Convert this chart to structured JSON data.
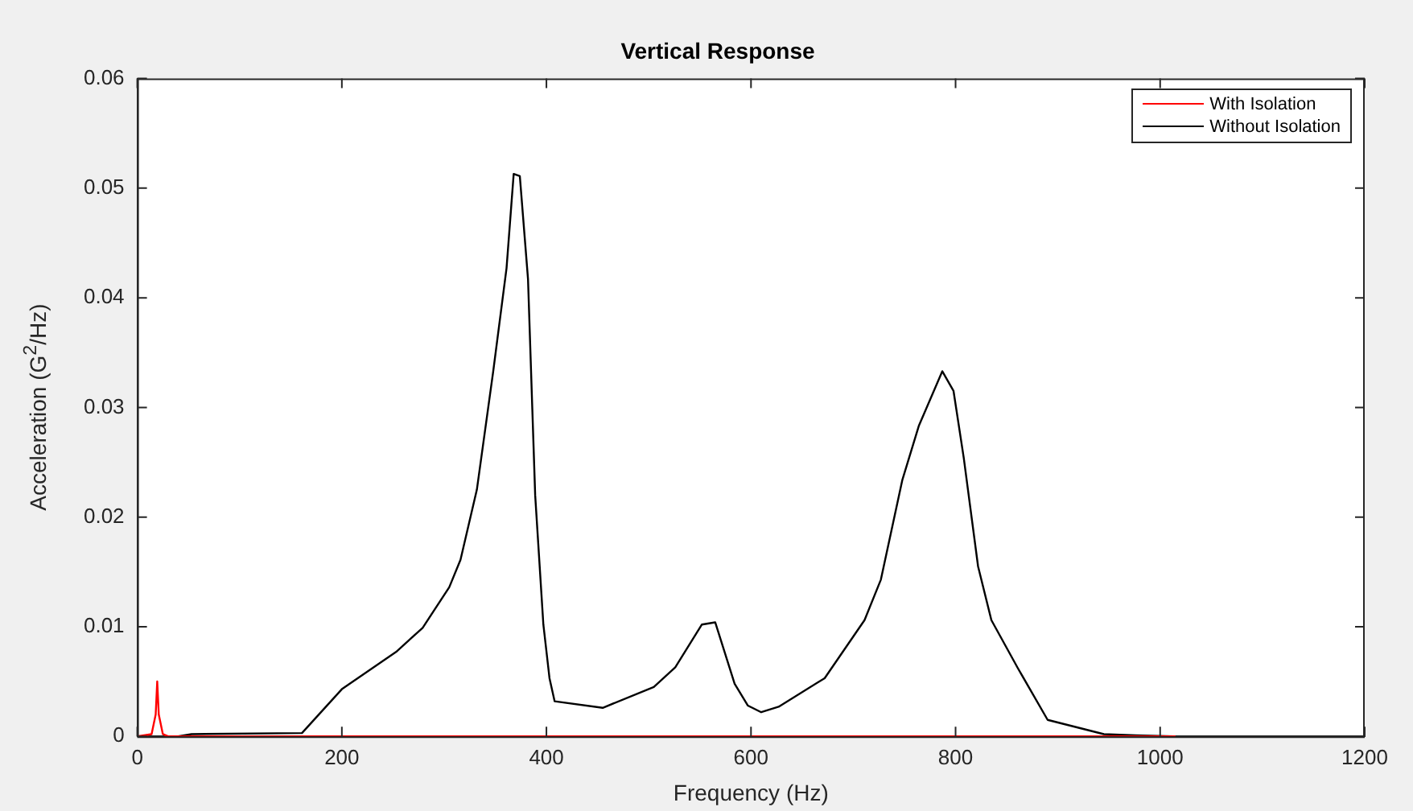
{
  "chart_data": {
    "type": "line",
    "title": "Vertical Response",
    "xlabel": "Frequency (Hz)",
    "ylabel": "Acceleration (G$^{2}$/Hz)",
    "xlim": [
      0,
      1200
    ],
    "xticks": [
      0,
      200,
      400,
      600,
      800,
      1000,
      1200
    ],
    "ylim": [
      0,
      0.06
    ],
    "yticks": [
      0,
      0.01,
      0.02,
      0.03,
      0.04,
      0.05,
      0.06
    ],
    "grid": false,
    "legend": "top right",
    "marker": "none",
    "line_style": "solid",
    "series": [
      {
        "name": "With Isolation",
        "color": "#ff0000",
        "x": [
          0,
          14,
          18,
          19.5,
          21,
          25,
          30,
          1015
        ],
        "values": [
          0,
          0.0002,
          0.002,
          0.005,
          0.002,
          0.0002,
          0,
          0
        ]
      },
      {
        "name": "Without Isolation",
        "color": "#000000",
        "x": [
          40,
          53,
          161,
          200,
          253,
          279,
          305,
          316,
          332,
          348,
          361,
          368,
          374,
          382,
          389,
          397,
          403,
          408,
          455,
          505,
          526,
          552,
          565,
          584,
          597,
          610,
          627,
          672,
          711,
          727,
          748,
          764,
          787,
          798,
          808,
          822,
          835,
          861,
          890,
          945,
          976,
          1013
        ],
        "values": [
          0,
          0.0002,
          0.0003,
          0.0043,
          0.0077,
          0.0099,
          0.0136,
          0.0161,
          0.0225,
          0.0333,
          0.0427,
          0.0513,
          0.0511,
          0.0417,
          0.022,
          0.0102,
          0.0053,
          0.0032,
          0.0026,
          0.0045,
          0.0063,
          0.0102,
          0.0104,
          0.0048,
          0.0028,
          0.0022,
          0.0027,
          0.0053,
          0.0106,
          0.0143,
          0.0234,
          0.0283,
          0.0333,
          0.0315,
          0.0254,
          0.0155,
          0.0106,
          0.0062,
          0.0015,
          0.0002,
          0.0001,
          0
        ]
      }
    ]
  }
}
